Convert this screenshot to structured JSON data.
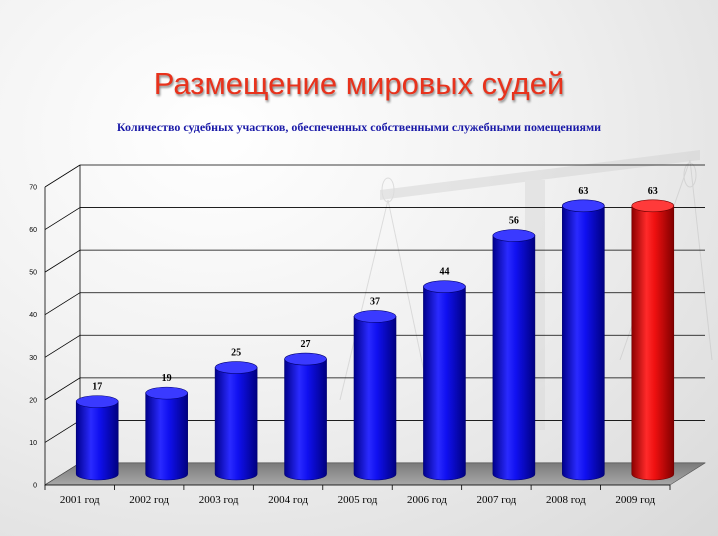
{
  "title": "Размещение мировых судей",
  "subtitle": "Количество судебных участков, обеспеченных собственными служебными помещениями",
  "colors": {
    "title": "#e8321c",
    "subtitle": "#1a1aa8",
    "bar_main": "#1414f0",
    "bar_highlight": "#e81414",
    "floor": "#8c8c8c"
  },
  "chart_data": {
    "type": "bar",
    "style": "3d-cylinder",
    "categories": [
      "2001 год",
      "2002 год",
      "2003 год",
      "2004 год",
      "2005 год",
      "2006 год",
      "2007 год",
      "2008 год",
      "2009 год"
    ],
    "values": [
      17,
      19,
      25,
      27,
      37,
      44,
      56,
      63,
      63
    ],
    "highlight_index": 8,
    "ylim": [
      0,
      70
    ],
    "yticks": [
      0,
      10,
      20,
      30,
      40,
      50,
      60,
      70
    ],
    "grid": true,
    "legend": "none",
    "xlabel": "",
    "ylabel": ""
  }
}
